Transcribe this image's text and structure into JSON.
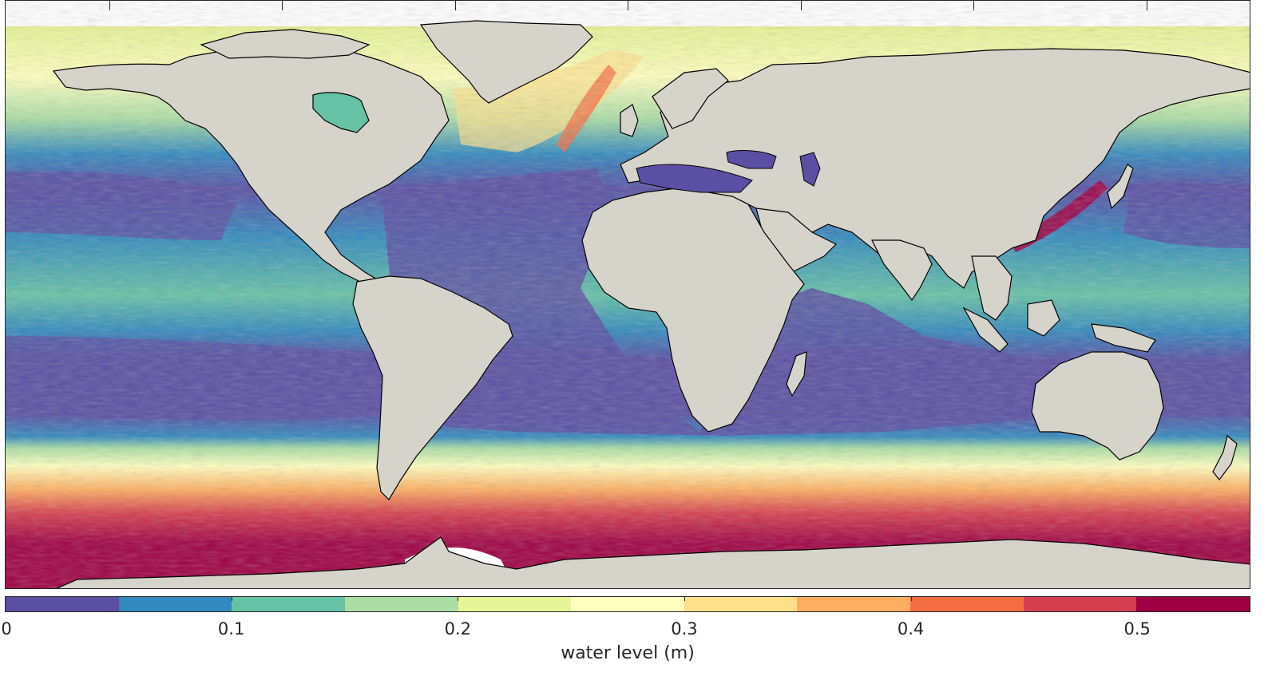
{
  "map": {
    "projection": "equirectangular",
    "land_color": "#d6d3ca",
    "coastline_color": "#000000",
    "sea_ice_color": "#ffffff"
  },
  "colorbar": {
    "title": "water level (m)",
    "range": [
      0,
      0.55
    ],
    "colors": [
      "#5a4fa2",
      "#3289bd",
      "#66c2a5",
      "#abdda4",
      "#e6f598",
      "#ffffbf",
      "#fee08b",
      "#fdae61",
      "#f46d43",
      "#d53e4f",
      "#9e0142"
    ],
    "ticks": [
      {
        "value": 0,
        "label": "0"
      },
      {
        "value": 0.1,
        "label": "0.1"
      },
      {
        "value": 0.2,
        "label": "0.2"
      },
      {
        "value": 0.3,
        "label": "0.3"
      },
      {
        "value": 0.4,
        "label": "0.4"
      },
      {
        "value": 0.5,
        "label": "0.5"
      }
    ]
  }
}
